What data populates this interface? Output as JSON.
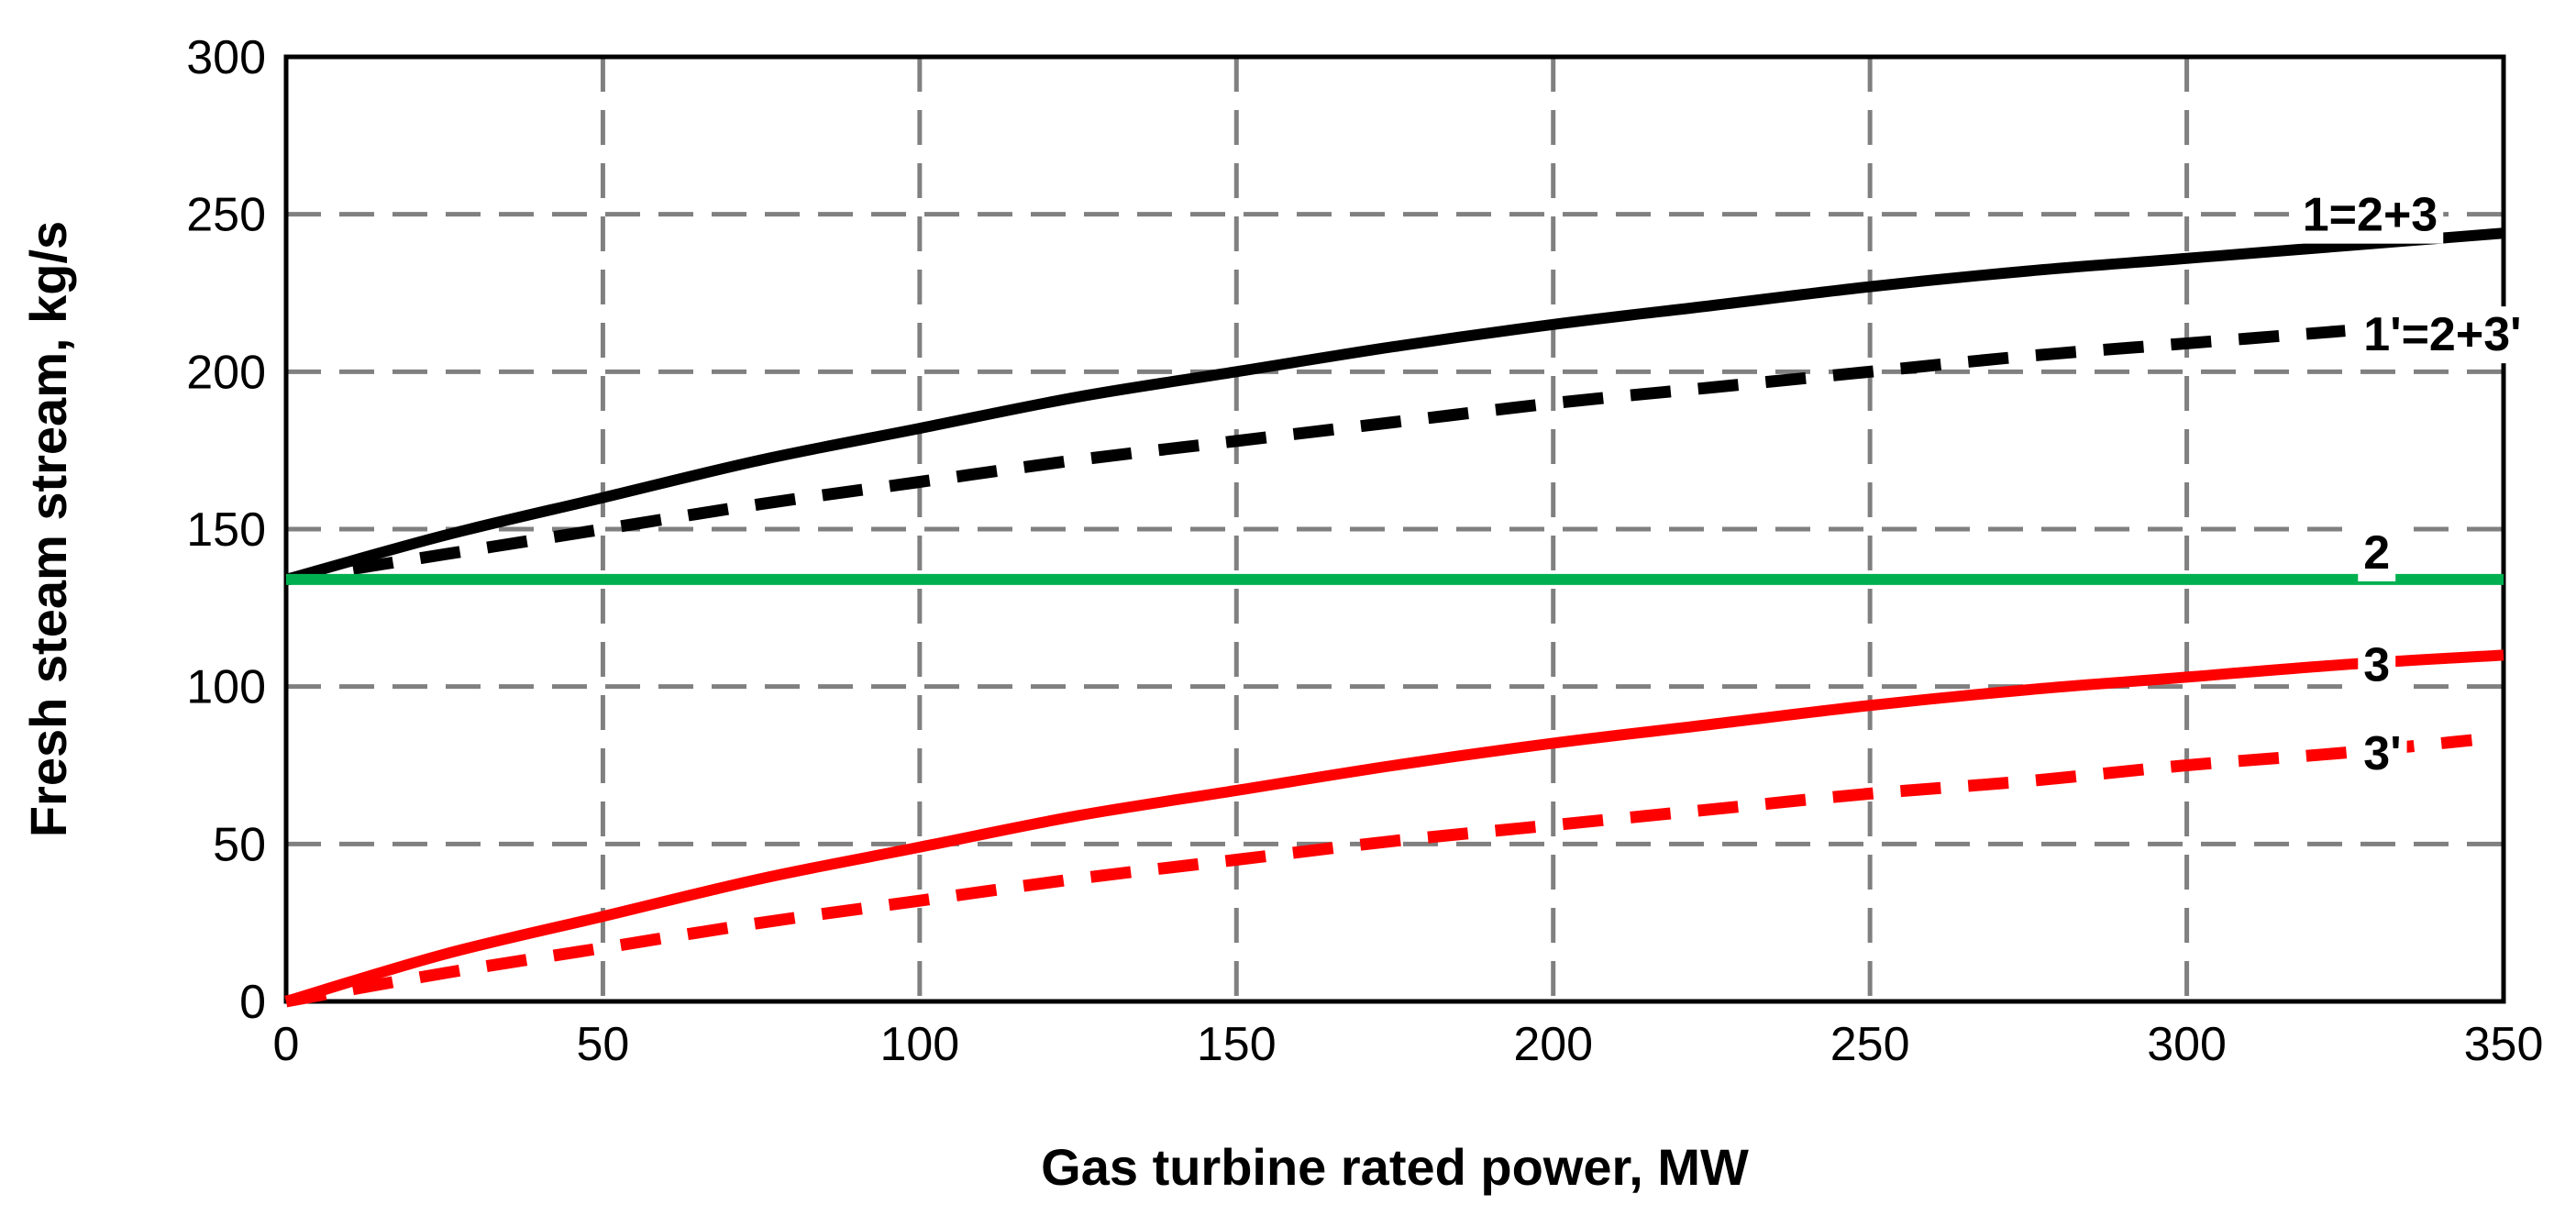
{
  "chart_data": {
    "type": "line",
    "title": "",
    "xlabel": "Gas turbine rated power, MW",
    "ylabel": "Fresh steam stream, kg/s",
    "xlim": [
      0,
      350
    ],
    "ylim": [
      0,
      300
    ],
    "xticks": [
      0,
      50,
      100,
      150,
      200,
      250,
      300,
      350
    ],
    "yticks": [
      0,
      50,
      100,
      150,
      200,
      250,
      300
    ],
    "grid": true,
    "legend": "inline labels at right end of each curve",
    "series": [
      {
        "name": "1=2+3",
        "color": "#000000",
        "dash": "solid",
        "x": [
          0,
          25,
          50,
          75,
          100,
          125,
          150,
          175,
          200,
          225,
          250,
          275,
          300,
          325,
          350
        ],
        "y": [
          134,
          148,
          160,
          172,
          182,
          192,
          200,
          208,
          215,
          221,
          227,
          232,
          236,
          240,
          244
        ]
      },
      {
        "name": "1'=2+3'",
        "color": "#000000",
        "dash": "dashed",
        "x": [
          0,
          25,
          50,
          75,
          100,
          125,
          150,
          175,
          200,
          225,
          250,
          275,
          300,
          325
        ],
        "y": [
          134,
          142,
          150,
          158,
          165,
          172,
          178,
          184,
          190,
          195,
          200,
          205,
          209,
          213
        ]
      },
      {
        "name": "2",
        "color": "#00b050",
        "dash": "solid",
        "x": [
          0,
          350
        ],
        "y": [
          134,
          134
        ]
      },
      {
        "name": "3",
        "color": "#ff0000",
        "dash": "solid",
        "x": [
          0,
          25,
          50,
          75,
          100,
          125,
          150,
          175,
          200,
          225,
          250,
          275,
          300,
          325,
          350
        ],
        "y": [
          0,
          15,
          27,
          39,
          49,
          59,
          67,
          75,
          82,
          88,
          94,
          99,
          103,
          107,
          110
        ]
      },
      {
        "name": "3'",
        "color": "#ff0000",
        "dash": "dashed",
        "x": [
          0,
          25,
          50,
          75,
          100,
          125,
          150,
          175,
          200,
          225,
          250,
          275,
          300,
          325,
          345
        ],
        "y": [
          0,
          9,
          17,
          25,
          32,
          39,
          45,
          51,
          56,
          61,
          66,
          70,
          75,
          79,
          83
        ]
      }
    ]
  }
}
